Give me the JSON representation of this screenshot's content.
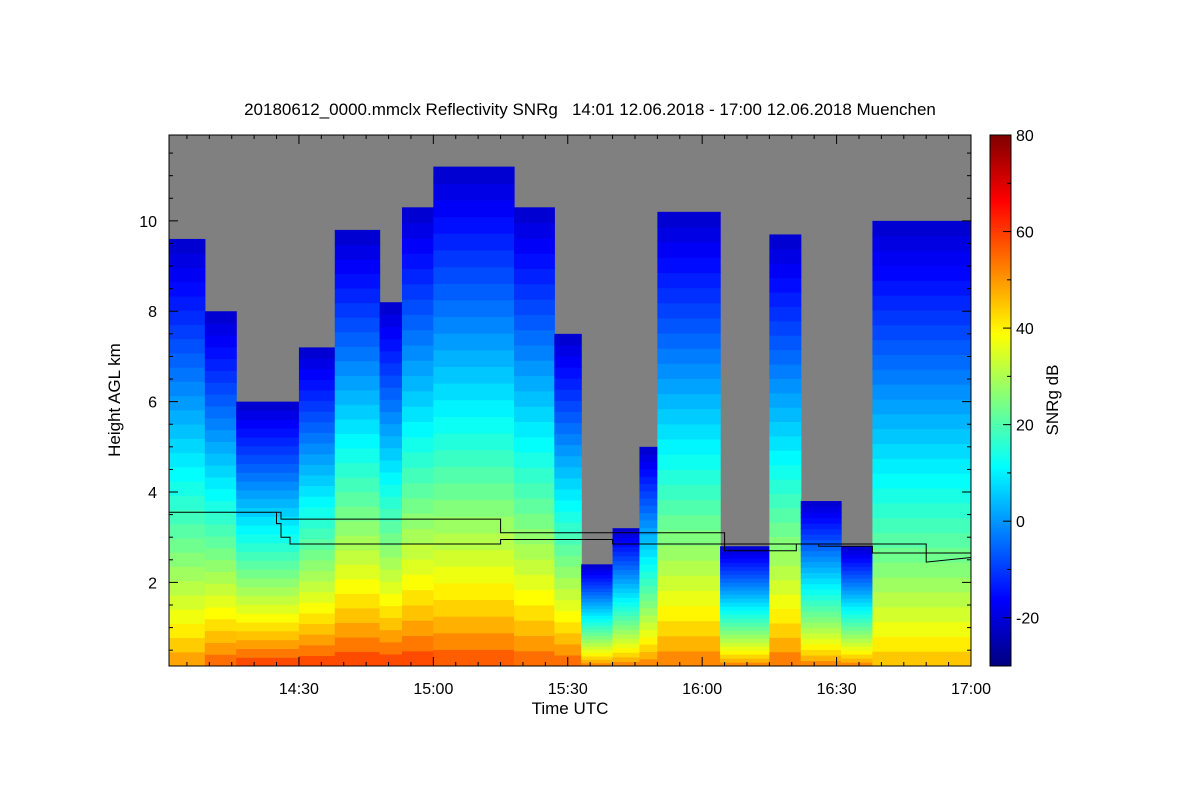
{
  "chart_data": {
    "type": "heatmap",
    "title": "20180612_0000.mmclx Reflectivity SNRg   14:01 12.06.2018 - 17:00 12.06.2018 Muenchen",
    "xlabel": "Time UTC",
    "ylabel": "Height AGL km",
    "colorbar_label": "SNRg dB",
    "x_ticks": [
      "14:30",
      "15:00",
      "15:30",
      "16:00",
      "16:30",
      "17:00"
    ],
    "x_tick_minutes": [
      30,
      60,
      90,
      120,
      150,
      180
    ],
    "x_range_minutes": [
      1,
      180
    ],
    "y_ticks": [
      2,
      4,
      6,
      8,
      10
    ],
    "y_range": [
      0.15,
      11.9
    ],
    "colorbar_ticks": [
      -20,
      0,
      20,
      40,
      60,
      80
    ],
    "colorbar_range": [
      -30,
      80
    ],
    "colors": {
      "no_signal": "#808080",
      "colormap": [
        "#00007f",
        "#0000ff",
        "#007fff",
        "#00ffff",
        "#7fff7f",
        "#ffff00",
        "#ff7f00",
        "#ff0000",
        "#7f0000"
      ]
    },
    "echo_columns": [
      {
        "start_min": 1,
        "end_min": 9,
        "top_km": 9.6,
        "surface_db": 52
      },
      {
        "start_min": 9,
        "end_min": 16,
        "top_km": 8.0,
        "surface_db": 58
      },
      {
        "start_min": 16,
        "end_min": 30,
        "top_km": 6.0,
        "surface_db": 62
      },
      {
        "start_min": 30,
        "end_min": 38,
        "top_km": 7.2,
        "surface_db": 62
      },
      {
        "start_min": 38,
        "end_min": 48,
        "top_km": 9.8,
        "surface_db": 62
      },
      {
        "start_min": 48,
        "end_min": 53,
        "top_km": 8.2,
        "surface_db": 62
      },
      {
        "start_min": 53,
        "end_min": 60,
        "top_km": 10.3,
        "surface_db": 62
      },
      {
        "start_min": 60,
        "end_min": 78,
        "top_km": 11.2,
        "surface_db": 60
      },
      {
        "start_min": 78,
        "end_min": 87,
        "top_km": 10.3,
        "surface_db": 58
      },
      {
        "start_min": 87,
        "end_min": 93,
        "top_km": 7.5,
        "surface_db": 58
      },
      {
        "start_min": 93,
        "end_min": 100,
        "top_km": 2.4,
        "surface_db": 55
      },
      {
        "start_min": 100,
        "end_min": 106,
        "top_km": 3.2,
        "surface_db": 55
      },
      {
        "start_min": 106,
        "end_min": 110,
        "top_km": 5.0,
        "surface_db": 55
      },
      {
        "start_min": 110,
        "end_min": 124,
        "top_km": 10.2,
        "surface_db": 55
      },
      {
        "start_min": 124,
        "end_min": 135,
        "top_km": 2.8,
        "surface_db": 55
      },
      {
        "start_min": 135,
        "end_min": 142,
        "top_km": 9.7,
        "surface_db": 56
      },
      {
        "start_min": 142,
        "end_min": 151,
        "top_km": 3.8,
        "surface_db": 55
      },
      {
        "start_min": 151,
        "end_min": 158,
        "top_km": 2.8,
        "surface_db": 55
      },
      {
        "start_min": 158,
        "end_min": 180,
        "top_km": 10.0,
        "surface_db": 48
      }
    ],
    "series": [
      {
        "x_min": [
          1,
          25,
          25,
          26,
          26,
          28,
          28,
          75,
          75,
          100,
          100,
          146,
          146,
          158,
          158,
          180
        ],
        "y_km": [
          3.55,
          3.55,
          3.3,
          3.3,
          3.0,
          3.0,
          2.85,
          2.85,
          2.95,
          2.95,
          2.85,
          2.85,
          2.8,
          2.8,
          2.65,
          2.65
        ]
      },
      {
        "x_min": [
          25,
          26,
          26,
          75,
          75,
          125,
          125,
          141,
          141,
          170,
          170,
          180
        ],
        "y_km": [
          3.55,
          3.55,
          3.4,
          3.4,
          3.1,
          3.1,
          2.7,
          2.7,
          2.85,
          2.85,
          2.45,
          2.55
        ]
      }
    ]
  }
}
